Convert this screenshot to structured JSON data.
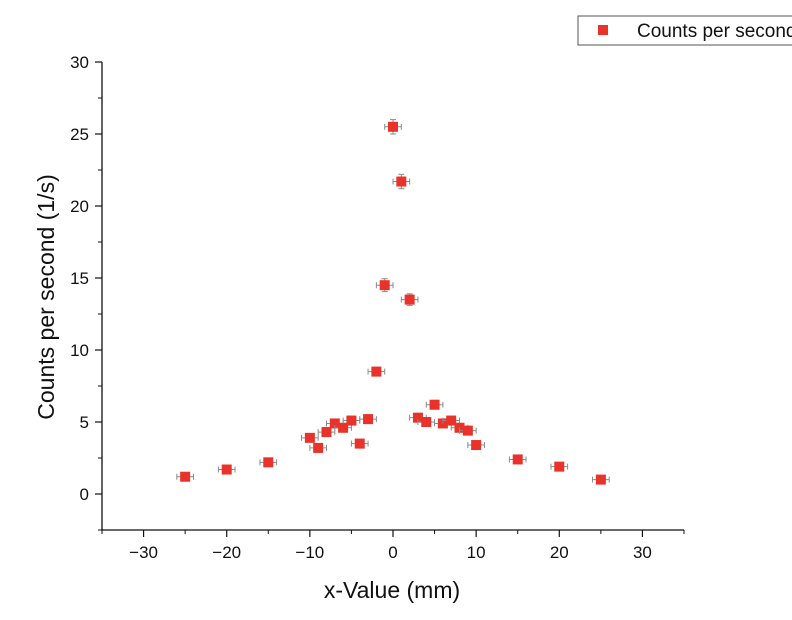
{
  "chart_data": {
    "type": "scatter",
    "xlabel": "x-Value (mm)",
    "ylabel": "Counts per second (1/s)",
    "xlim": [
      -35,
      35
    ],
    "ylim": [
      -2.5,
      30
    ],
    "x_ticks": [
      -30,
      -20,
      -10,
      0,
      10,
      20,
      30
    ],
    "y_ticks": [
      0,
      5,
      10,
      15,
      20,
      25,
      30
    ],
    "x_tick_labels": [
      "−30",
      "−20",
      "−10",
      "0",
      "10",
      "20",
      "30"
    ],
    "y_tick_labels": [
      "0",
      "5",
      "10",
      "15",
      "20",
      "25",
      "30"
    ],
    "grid": false,
    "legend_position": "top-right",
    "marker_color": "#e8322a",
    "errorbar_color": "#8a8a8a",
    "series": [
      {
        "name": "Counts per second",
        "x": [
          -25,
          -20,
          -15,
          -10,
          -9,
          -8,
          -7,
          -6,
          -5,
          -4,
          -3,
          -2,
          -1,
          0,
          1,
          2,
          3,
          4,
          5,
          6,
          7,
          8,
          9,
          10,
          15,
          20,
          25
        ],
        "y": [
          1.2,
          1.7,
          2.2,
          3.9,
          3.2,
          4.3,
          4.9,
          4.6,
          5.1,
          3.5,
          5.2,
          8.5,
          14.5,
          25.5,
          21.7,
          13.5,
          5.3,
          5.0,
          6.2,
          4.9,
          5.1,
          4.6,
          4.4,
          3.4,
          2.4,
          1.9,
          1.0
        ],
        "x_err": [
          1,
          1,
          1,
          1,
          1,
          1,
          1,
          1,
          1,
          1,
          1,
          1,
          1,
          1,
          1,
          1,
          1,
          1,
          1,
          1,
          1,
          1,
          1,
          1,
          1,
          1,
          1
        ],
        "y_err": [
          0.2,
          0.2,
          0.2,
          0.25,
          0.25,
          0.3,
          0.3,
          0.3,
          0.3,
          0.3,
          0.3,
          0.3,
          0.45,
          0.5,
          0.5,
          0.4,
          0.3,
          0.3,
          0.3,
          0.3,
          0.3,
          0.3,
          0.3,
          0.25,
          0.2,
          0.2,
          0.2
        ]
      }
    ]
  }
}
